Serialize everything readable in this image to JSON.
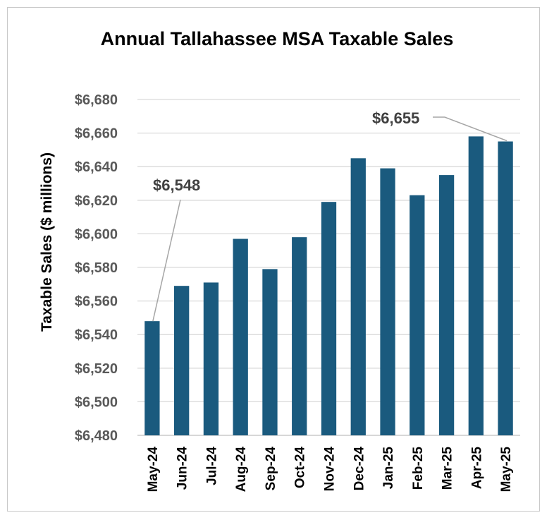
{
  "chart_data": {
    "type": "bar",
    "title": "Annual Tallahassee MSA Taxable Sales",
    "xlabel": "",
    "ylabel": "Taxable Sales  ($ millions)",
    "categories": [
      "May-24",
      "Jun-24",
      "Jul-24",
      "Aug-24",
      "Sep-24",
      "Oct-24",
      "Nov-24",
      "Dec-24",
      "Jan-25",
      "Feb-25",
      "Mar-25",
      "Apr-25",
      "May-25"
    ],
    "values": [
      6548,
      6569,
      6571,
      6597,
      6579,
      6598,
      6619,
      6645,
      6639,
      6623,
      6635,
      6658,
      6655
    ],
    "ylim": [
      6480,
      6680
    ],
    "yticks": [
      6480,
      6500,
      6520,
      6540,
      6560,
      6580,
      6600,
      6620,
      6640,
      6660,
      6680
    ],
    "ytick_labels": [
      "$6,480",
      "$6,500",
      "$6,520",
      "$6,540",
      "$6,560",
      "$6,580",
      "$6,600",
      "$6,620",
      "$6,640",
      "$6,660",
      "$6,680"
    ],
    "annotations": [
      {
        "label": "$6,548",
        "category": "May-24"
      },
      {
        "label": "$6,655",
        "category": "May-25"
      }
    ],
    "bar_color": "#1a5a7e",
    "grid": true,
    "legend": "none"
  }
}
